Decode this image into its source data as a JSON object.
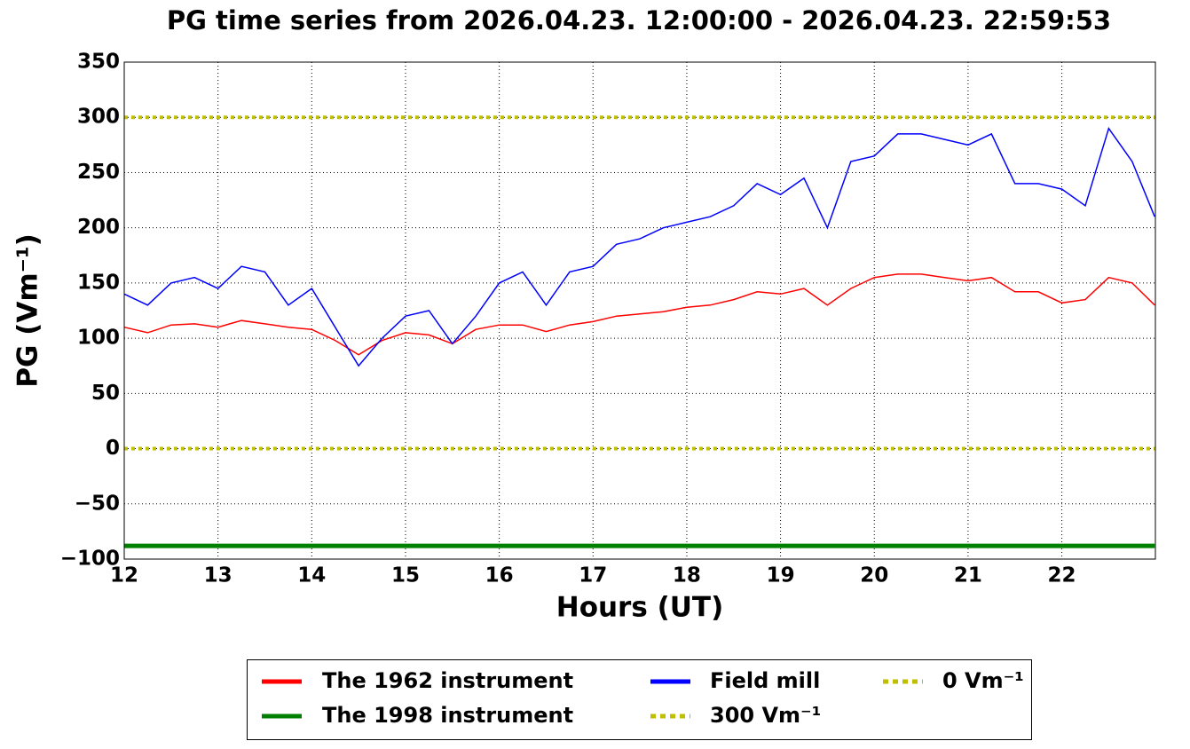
{
  "chart_data": {
    "type": "line",
    "title": "PG time series from 2026.04.23. 12:00:00 - 2026.04.23. 22:59:53",
    "x_label": "Hours (UT)",
    "y_label": "PG (Vm⁻¹)",
    "x": [
      12,
      12.25,
      12.5,
      12.75,
      13,
      13.25,
      13.5,
      13.75,
      14,
      14.25,
      14.5,
      14.75,
      15,
      15.25,
      15.5,
      15.75,
      16,
      16.25,
      16.5,
      16.75,
      17,
      17.25,
      17.5,
      17.75,
      18,
      18.25,
      18.5,
      18.75,
      19,
      19.25,
      19.5,
      19.75,
      20,
      20.25,
      20.5,
      20.75,
      21,
      21.25,
      21.5,
      21.75,
      22,
      22.25,
      22.5,
      22.75,
      22.99
    ],
    "series": [
      {
        "name": "The 1962 instrument",
        "color": "#ff0000",
        "values": [
          110,
          105,
          112,
          113,
          110,
          116,
          113,
          110,
          108,
          98,
          85,
          98,
          105,
          103,
          95,
          108,
          112,
          112,
          106,
          112,
          115,
          120,
          122,
          124,
          128,
          130,
          135,
          142,
          140,
          145,
          130,
          145,
          155,
          158,
          158,
          155,
          152,
          155,
          142,
          142,
          132,
          135,
          155,
          150,
          130
        ]
      },
      {
        "name": "The 1998 instrument",
        "color": "#008000",
        "values": [
          -88,
          -88,
          -88,
          -88,
          -88,
          -88,
          -88,
          -88,
          -88,
          -88,
          -88,
          -88,
          -88,
          -88,
          -88,
          -88,
          -88,
          -88,
          -88,
          -88,
          -88,
          -88,
          -88,
          -88,
          -88,
          -88,
          -88,
          -88,
          -88,
          -88,
          -88,
          -88,
          -88,
          -88,
          -88,
          -88,
          -88,
          -88,
          -88,
          -88,
          -88,
          -88,
          -88,
          -88,
          -88
        ]
      },
      {
        "name": "Field mill",
        "color": "#0000ff",
        "values": [
          140,
          130,
          150,
          155,
          145,
          165,
          160,
          130,
          145,
          110,
          75,
          100,
          120,
          125,
          95,
          120,
          150,
          160,
          130,
          160,
          165,
          185,
          190,
          200,
          205,
          210,
          220,
          240,
          230,
          245,
          200,
          260,
          265,
          285,
          285,
          280,
          275,
          285,
          240,
          240,
          235,
          220,
          290,
          260,
          210
        ]
      }
    ],
    "hlines": [
      {
        "name": "300 Vm⁻¹",
        "color": "#bfbf00",
        "value": 300
      },
      {
        "name": "0 Vm⁻¹",
        "color": "#bfbf00",
        "value": 0
      }
    ],
    "xlim": [
      12,
      22.998
    ],
    "ylim": [
      -100,
      350
    ],
    "xticks": [
      12,
      13,
      14,
      15,
      16,
      17,
      18,
      19,
      20,
      21,
      22
    ],
    "yticks": [
      {
        "value": -100,
        "label": "−100"
      },
      {
        "value": -50,
        "label": "−50"
      },
      0,
      50,
      100,
      150,
      200,
      250,
      300,
      350
    ],
    "grid": true
  }
}
